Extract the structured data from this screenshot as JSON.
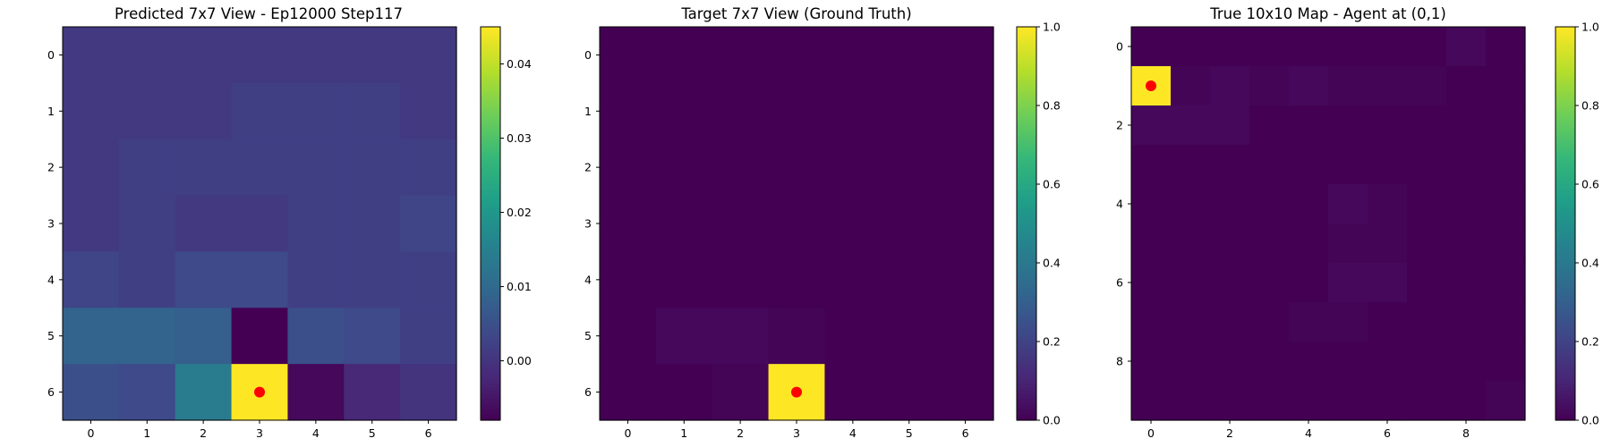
{
  "colors": {
    "colormap": [
      "#440154",
      "#482878",
      "#3e4989",
      "#31688e",
      "#26828e",
      "#1f9e89",
      "#35b779",
      "#6ece58",
      "#b5de2b",
      "#fde725"
    ],
    "marker": "#ff0000"
  },
  "chart_data": [
    {
      "type": "heatmap",
      "title": "Predicted 7x7 View - Ep12000 Step117",
      "colormap": "viridis",
      "grid": false,
      "xticks": [
        0,
        1,
        2,
        3,
        4,
        5,
        6
      ],
      "yticks": [
        0,
        1,
        2,
        3,
        4,
        5,
        6
      ],
      "vmin": -0.008,
      "vmax": 0.045,
      "colorbar_ticks": [
        0.04,
        0.03,
        0.02,
        0.01,
        0.0
      ],
      "colorbar_tick_labels": [
        "0.04",
        "0.03",
        "0.02",
        "0.01",
        "0.00"
      ],
      "marker": [
        3,
        6
      ],
      "values": [
        [
          0.001,
          0.001,
          0.001,
          0.001,
          0.001,
          0.001,
          0.001
        ],
        [
          0.001,
          0.001,
          0.001,
          0.002,
          0.002,
          0.002,
          0.001
        ],
        [
          0.001,
          0.002,
          0.002,
          0.002,
          0.002,
          0.002,
          0.002
        ],
        [
          0.001,
          0.002,
          0.001,
          0.001,
          0.002,
          0.002,
          0.003
        ],
        [
          0.003,
          0.002,
          0.004,
          0.004,
          0.002,
          0.002,
          0.002
        ],
        [
          0.009,
          0.009,
          0.008,
          -0.008,
          0.005,
          0.004,
          0.002
        ],
        [
          0.005,
          0.004,
          0.014,
          0.045,
          -0.007,
          -0.002,
          0.0
        ]
      ]
    },
    {
      "type": "heatmap",
      "title": "Target 7x7 View (Ground Truth)",
      "colormap": "viridis",
      "grid": false,
      "xticks": [
        0,
        1,
        2,
        3,
        4,
        5,
        6
      ],
      "yticks": [
        0,
        1,
        2,
        3,
        4,
        5,
        6
      ],
      "vmin": 0.0,
      "vmax": 1.0,
      "colorbar_ticks": [
        1.0,
        0.8,
        0.6,
        0.4,
        0.2,
        0.0
      ],
      "colorbar_tick_labels": [
        "1.0",
        "0.8",
        "0.6",
        "0.4",
        "0.2",
        "0.0"
      ],
      "marker": [
        3,
        6
      ],
      "values": [
        [
          0,
          0,
          0,
          0,
          0,
          0,
          0
        ],
        [
          0,
          0,
          0,
          0,
          0,
          0,
          0
        ],
        [
          0,
          0,
          0,
          0,
          0,
          0,
          0
        ],
        [
          0,
          0,
          0,
          0,
          0,
          0,
          0
        ],
        [
          0,
          0,
          0,
          0,
          0,
          0,
          0
        ],
        [
          0,
          0.02,
          0.02,
          0.01,
          0,
          0,
          0
        ],
        [
          0,
          0,
          0.01,
          1.0,
          0,
          0,
          0
        ]
      ]
    },
    {
      "type": "heatmap",
      "title": "True 10x10 Map - Agent at (0,1)",
      "colormap": "viridis",
      "grid": false,
      "xticks": [
        0,
        2,
        4,
        6,
        8
      ],
      "yticks": [
        0,
        2,
        4,
        6,
        8
      ],
      "vmin": 0.0,
      "vmax": 1.0,
      "colorbar_ticks": [
        1.0,
        0.8,
        0.6,
        0.4,
        0.2,
        0.0
      ],
      "colorbar_tick_labels": [
        "1.0",
        "0.8",
        "0.6",
        "0.4",
        "0.2",
        "0.0"
      ],
      "marker": [
        0,
        1
      ],
      "values": [
        [
          0,
          0,
          0,
          0,
          0,
          0,
          0,
          0,
          0.02,
          0
        ],
        [
          1.0,
          0.01,
          0.02,
          0.01,
          0.02,
          0.01,
          0.01,
          0.01,
          0,
          0
        ],
        [
          0.02,
          0.02,
          0.02,
          0,
          0,
          0,
          0,
          0,
          0,
          0
        ],
        [
          0,
          0,
          0,
          0,
          0,
          0,
          0,
          0,
          0,
          0
        ],
        [
          0,
          0,
          0,
          0,
          0,
          0.02,
          0.01,
          0,
          0,
          0
        ],
        [
          0,
          0,
          0,
          0,
          0,
          0.01,
          0.01,
          0,
          0,
          0
        ],
        [
          0,
          0,
          0,
          0,
          0,
          0.02,
          0.02,
          0,
          0,
          0
        ],
        [
          0,
          0,
          0,
          0,
          0.01,
          0.01,
          0,
          0,
          0,
          0
        ],
        [
          0,
          0,
          0,
          0,
          0,
          0,
          0,
          0,
          0,
          0
        ],
        [
          0,
          0,
          0,
          0,
          0,
          0,
          0,
          0,
          0,
          0.01
        ]
      ]
    }
  ]
}
